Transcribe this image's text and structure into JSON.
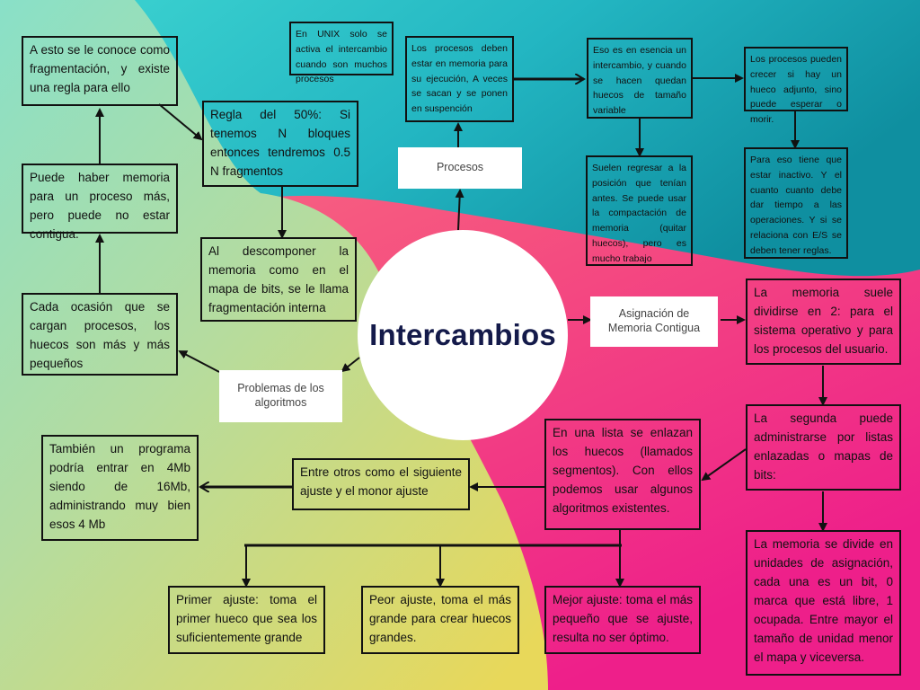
{
  "center": {
    "title": "Intercambios"
  },
  "branches": {
    "procesos": "Procesos",
    "asignacion": "Asignación de Memoria Contigua",
    "problemas": "Problemas de los algoritmos"
  },
  "boxes": {
    "fragmentacion": "A esto se le conoce como fragmentación, y existe una regla para ello",
    "regla_50": "Regla del 50%: Si tenemos N bloques entonces tendremos 0.5 N fragmentos",
    "memoria_no_contigua": "Puede haber memoria para un proceso más, pero puede no estar contigua.",
    "fragmentacion_interna": "Al descomponer la memoria como en el mapa de bits, se le llama fragmentación interna",
    "huecos_mas_pequenos": "Cada ocasión que se cargan procesos, los huecos son más y más pequeños",
    "unix": "En UNIX solo se activa el intercambio cuando son muchos procesos",
    "procesos_memoria": "Los procesos deben estar en memoria para su ejecución, A veces se sacan y se ponen en suspención",
    "intercambio": "Eso es en esencia un intercambio, y cuando se hacen quedan huecos de tamaño variable",
    "crecer_hueco": "Los procesos pueden crecer si hay un hueco adjunto, sino puede esperar o morir.",
    "regresar_posicion": "Suelen regresar a la posición que tenían antes. Se puede usar la compactación de memoria (quitar huecos), pero es mucho trabajo",
    "inactivo": "Para eso tiene que estar inactivo. Y el cuanto cuanto debe dar tiempo a las operaciones. Y si se relaciona con E/S se deben tener reglas.",
    "dividirse_en_2": "La memoria suele dividirse en 2: para el sistema operativo y para los procesos del usuario.",
    "listas_enlazadas": "La segunda puede administrarse por listas enlazadas o mapas de bits:",
    "unidades_asignacion": "La memoria se divide en unidades de asignación, cada una es un bit, 0 marca que está libre, 1 ocupada. Entre mayor el tamaño de unidad menor el mapa y viceversa.",
    "lista_huecos": "En una lista se enlazan los huecos (llamados segmentos). Con ellos podemos usar algunos algoritmos existentes.",
    "siguiente_ajuste": "Entre otros como el siguiente ajuste y el monor ajuste",
    "programa_4mb": "También un programa podría entrar en 4Mb siendo de 16Mb, administrando muy bien esos 4 Mb",
    "primer_ajuste": "Primer ajuste: toma el primer hueco que sea los suficientemente grande",
    "peor_ajuste": "Peor ajuste, toma el más grande para crear huecos grandes.",
    "mejor_ajuste": "Mejor ajuste: toma el más pequeño que se ajuste, resulta no ser óptimo."
  },
  "colors": {
    "teal": "#22b3c0",
    "dark_teal": "#1294a4",
    "pink": "#f55d86",
    "magenta": "#ee2a86",
    "yellow_green": "#c8dd7c",
    "mint": "#93e2c6",
    "center_text": "#141a4a"
  }
}
